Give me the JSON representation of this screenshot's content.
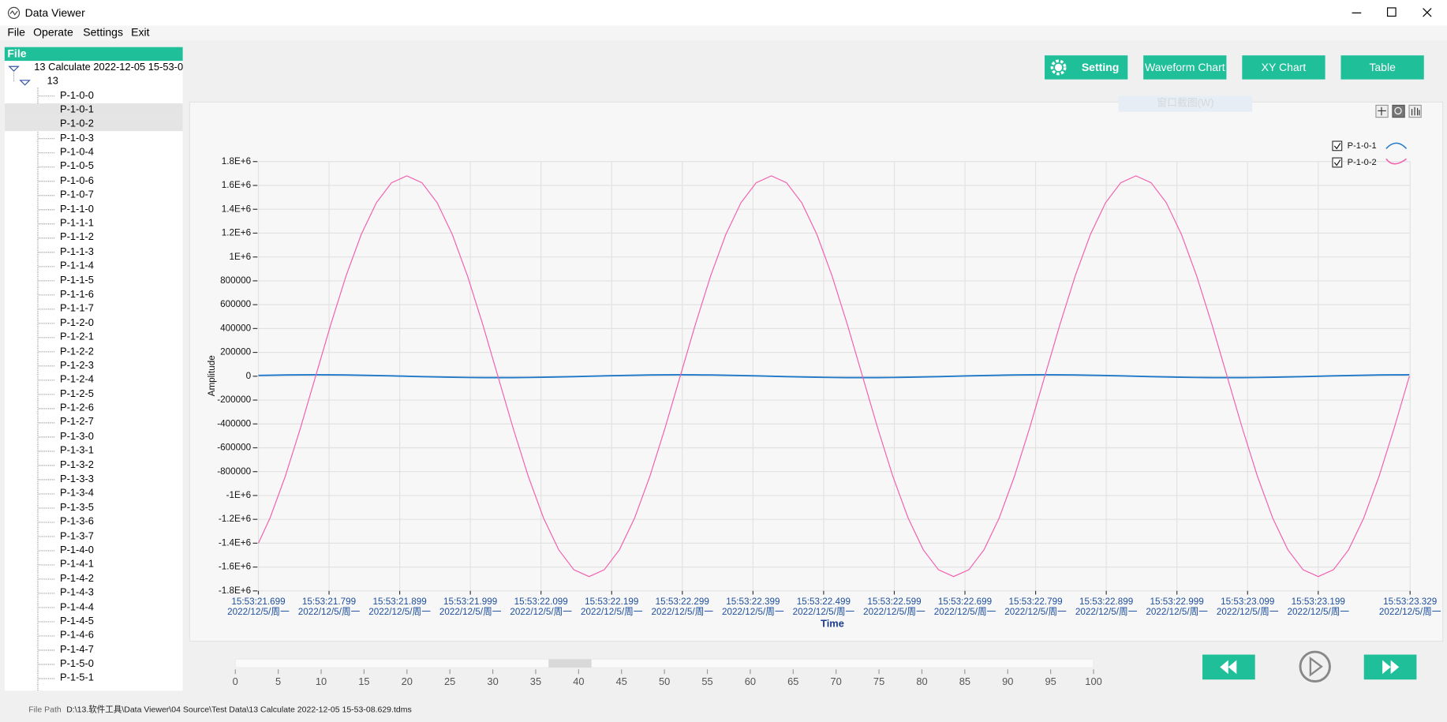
{
  "window": {
    "title": "Data Viewer"
  },
  "menu": [
    "File",
    "Operate",
    "Settings",
    "Exit"
  ],
  "sidebar": {
    "header": "File",
    "root": "13 Calculate 2022-12-05 15-53-0",
    "group": "13",
    "items": [
      "P-1-0-0",
      "P-1-0-1",
      "P-1-0-2",
      "P-1-0-3",
      "P-1-0-4",
      "P-1-0-5",
      "P-1-0-6",
      "P-1-0-7",
      "P-1-1-0",
      "P-1-1-1",
      "P-1-1-2",
      "P-1-1-3",
      "P-1-1-4",
      "P-1-1-5",
      "P-1-1-6",
      "P-1-1-7",
      "P-1-2-0",
      "P-1-2-1",
      "P-1-2-2",
      "P-1-2-3",
      "P-1-2-4",
      "P-1-2-5",
      "P-1-2-6",
      "P-1-2-7",
      "P-1-3-0",
      "P-1-3-1",
      "P-1-3-2",
      "P-1-3-3",
      "P-1-3-4",
      "P-1-3-5",
      "P-1-3-6",
      "P-1-3-7",
      "P-1-4-0",
      "P-1-4-1",
      "P-1-4-2",
      "P-1-4-3",
      "P-1-4-4",
      "P-1-4-5",
      "P-1-4-6",
      "P-1-4-7",
      "P-1-5-0",
      "P-1-5-1"
    ],
    "selected": [
      1,
      2
    ]
  },
  "buttons": [
    "Setting",
    "Waveform Chart",
    "XY Chart",
    "Table"
  ],
  "tooltip": "窗口截图(W)",
  "chart_data": {
    "type": "line",
    "x_label": "Time",
    "y_label": "Amplitude",
    "grid": true,
    "legend": "top-right",
    "xlim": [
      21.699,
      23.329
    ],
    "ylim": [
      -1800000,
      1800000
    ],
    "xticks": [
      {
        "value": 21.699,
        "label": "15:53:21.699"
      },
      {
        "value": 21.799,
        "label": "15:53:21.799"
      },
      {
        "value": 21.899,
        "label": "15:53:21.899"
      },
      {
        "value": 21.999,
        "label": "15:53:21.999"
      },
      {
        "value": 22.099,
        "label": "15:53:22.099"
      },
      {
        "value": 22.199,
        "label": "15:53:22.199"
      },
      {
        "value": 22.299,
        "label": "15:53:22.299"
      },
      {
        "value": 22.399,
        "label": "15:53:22.399"
      },
      {
        "value": 22.499,
        "label": "15:53:22.499"
      },
      {
        "value": 22.599,
        "label": "15:53:22.599"
      },
      {
        "value": 22.699,
        "label": "15:53:22.699"
      },
      {
        "value": 22.799,
        "label": "15:53:22.799"
      },
      {
        "value": 22.899,
        "label": "15:53:22.899"
      },
      {
        "value": 22.999,
        "label": "15:53:22.999"
      },
      {
        "value": 23.099,
        "label": "15:53:23.099"
      },
      {
        "value": 23.199,
        "label": "15:53:23.199"
      },
      {
        "value": 23.329,
        "label": "15:53:23.329"
      }
    ],
    "xtick_sublabels": [
      "2022/12/5/周一",
      "2022/12/5/周一",
      "2022/12/5/周一",
      "2022/12/5/周一",
      "2022/12/5/周一",
      "2022/12/5/周一",
      "2022/12/5/周一",
      "2022/12/5/周一",
      "2022/12/5/周一",
      "2022/12/5/周一",
      "2022/12/5/周一",
      "2022/12/5/周一",
      "2022/12/5/周一",
      "2022/12/5/周一",
      "2022/12/5/周一",
      "2022/12/5/周一",
      "2022/12/5/周一"
    ],
    "yticks": [
      {
        "value": 1800000,
        "label": "1.8E+6"
      },
      {
        "value": 1600000,
        "label": "1.6E+6"
      },
      {
        "value": 1400000,
        "label": "1.4E+6"
      },
      {
        "value": 1200000,
        "label": "1.2E+6"
      },
      {
        "value": 1000000,
        "label": "1E+6"
      },
      800000,
      600000,
      400000,
      200000,
      0,
      -200000,
      -400000,
      -600000,
      -800000,
      {
        "value": -1000000,
        "label": "-1E+6"
      },
      {
        "value": -1200000,
        "label": "-1.2E+6"
      },
      {
        "value": -1400000,
        "label": "-1.4E+6"
      },
      {
        "value": -1600000,
        "label": "-1.6E+6"
      },
      {
        "value": -1800000,
        "label": "-1.8E+6"
      }
    ],
    "x": [
      21.699,
      21.7155,
      21.737,
      21.7585,
      21.78,
      21.8015,
      21.823,
      21.8445,
      21.866,
      21.8875,
      21.909,
      21.9305,
      21.952,
      21.9735,
      21.995,
      22.0165,
      22.038,
      22.0595,
      22.081,
      22.1025,
      22.124,
      22.1455,
      22.167,
      22.1885,
      22.21,
      22.2315,
      22.253,
      22.2745,
      22.296,
      22.3175,
      22.339,
      22.3605,
      22.382,
      22.4035,
      22.425,
      22.4465,
      22.468,
      22.4895,
      22.511,
      22.5325,
      22.554,
      22.5755,
      22.597,
      22.6185,
      22.64,
      22.6615,
      22.683,
      22.7045,
      22.726,
      22.7475,
      22.769,
      22.7905,
      22.812,
      22.8335,
      22.855,
      22.8765,
      22.898,
      22.9195,
      22.941,
      22.9625,
      22.984,
      23.0055,
      23.027,
      23.0485,
      23.07,
      23.0915,
      23.113,
      23.1345,
      23.156,
      23.1775,
      23.199,
      23.2205,
      23.242,
      23.2635,
      23.285,
      23.3065,
      23.328
    ],
    "series": [
      {
        "name": "P-1-0-1",
        "color": "#1f78c8",
        "values": [
          6600,
          8485,
          10392,
          11591,
          12000,
          11591,
          10392,
          8485,
          6000,
          3106,
          0,
          -3106,
          -6000,
          -8485,
          -10392,
          -11591,
          -12000,
          -11591,
          -10392,
          -8485,
          -6000,
          -3106,
          0,
          3106,
          6000,
          8485,
          10392,
          11591,
          12000,
          11591,
          10392,
          8485,
          6000,
          3106,
          0,
          -3106,
          -6000,
          -8485,
          -10392,
          -11591,
          -12000,
          -11591,
          -10392,
          -8485,
          -6000,
          -3106,
          0,
          3106,
          6000,
          8485,
          10392,
          11591,
          12000,
          11591,
          10392,
          8485,
          6000,
          3106,
          0,
          -3106,
          -6000,
          -8485,
          -10392,
          -11591,
          -12000,
          -11591,
          -10392,
          -8485,
          -6000,
          -3106,
          0,
          3106,
          6000,
          8485,
          10392,
          11591,
          12000
        ]
      },
      {
        "name": "P-1-0-2",
        "color": "#f25fae",
        "values": [
          -1400000,
          -1187900,
          -840000,
          -434800,
          0,
          434800,
          840000,
          1187900,
          1454900,
          1622700,
          1680000,
          1622700,
          1454900,
          1187900,
          840000,
          434800,
          0,
          -434800,
          -840000,
          -1187900,
          -1454900,
          -1622700,
          -1680000,
          -1622700,
          -1454900,
          -1187900,
          -840000,
          -434800,
          0,
          434800,
          840000,
          1187900,
          1454900,
          1622700,
          1680000,
          1622700,
          1454900,
          1187900,
          840000,
          434800,
          0,
          -434800,
          -840000,
          -1187900,
          -1454900,
          -1622700,
          -1680000,
          -1622700,
          -1454900,
          -1187900,
          -840000,
          -434800,
          0,
          434800,
          840000,
          1187900,
          1454900,
          1622700,
          1680000,
          1622700,
          1454900,
          1187900,
          840000,
          434800,
          0,
          -434800,
          -840000,
          -1187900,
          -1454900,
          -1622700,
          -1680000,
          -1622700,
          -1454900,
          -1187900,
          -840000,
          -434800,
          0
        ]
      }
    ]
  },
  "slider": {
    "min": 0,
    "max": 100,
    "ticks": [
      0,
      5,
      10,
      15,
      20,
      25,
      30,
      35,
      40,
      45,
      50,
      55,
      60,
      65,
      70,
      75,
      80,
      85,
      90,
      95,
      100
    ],
    "thumb": [
      36.5,
      41.5
    ]
  },
  "status": {
    "label": "File Path",
    "path": "D:\\13.软件工具\\Data Viewer\\04 Source\\Test Data\\13 Calculate 2022-12-05 15-53-08.629.tdms"
  }
}
